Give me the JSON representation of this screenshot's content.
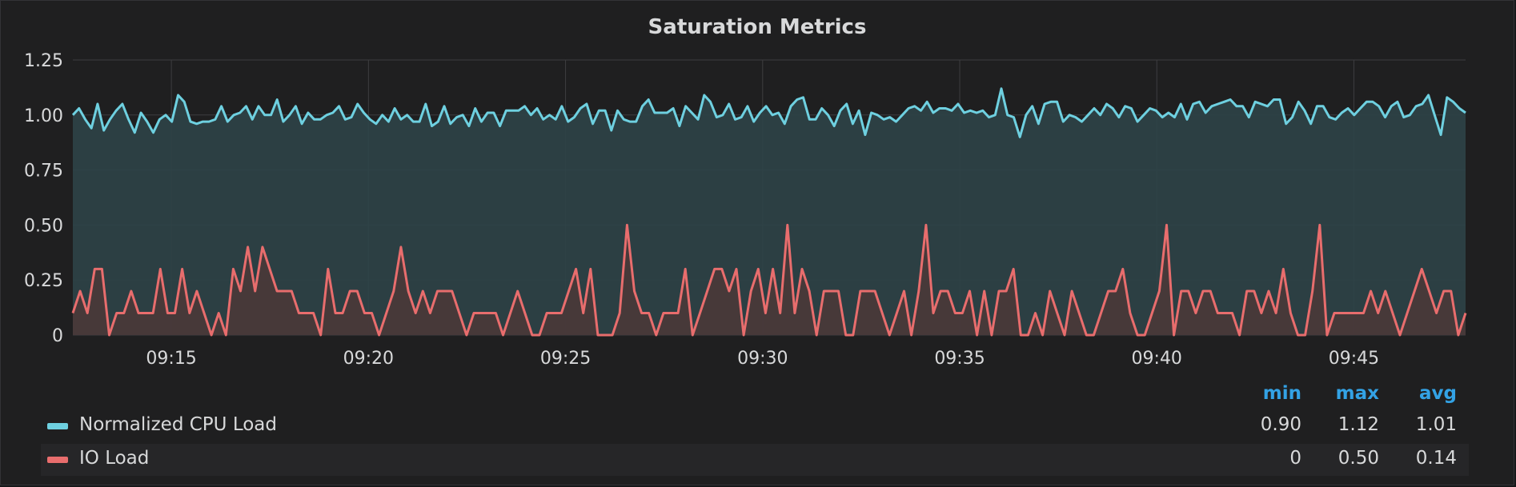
{
  "panel": {
    "title": "Saturation Metrics"
  },
  "colors": {
    "cpu": "#6ed0e0",
    "io": "#e86d6d",
    "cpu_fill": "#2e4247",
    "io_fill": "#4a3839",
    "grid": "#3d3d40",
    "tick_text": "#d8d9da",
    "legend_header": "#33a2e5"
  },
  "chart_data": {
    "type": "area",
    "x_start": "09:12:30",
    "x_end": "09:47:50",
    "x_tick_labels": [
      "09:15",
      "09:20",
      "09:25",
      "09:30",
      "09:35",
      "09:40",
      "09:45"
    ],
    "y_tick_labels": [
      "0",
      "0.25",
      "0.50",
      "0.75",
      "1.00",
      "1.25"
    ],
    "ylim": [
      0,
      1.25
    ],
    "grid": true,
    "legend_placement": "bottom",
    "series": [
      {
        "name": "Normalized CPU Load",
        "values": [
          1.0,
          1.03,
          0.98,
          0.94,
          1.05,
          0.93,
          0.98,
          1.02,
          1.05,
          0.98,
          0.92,
          1.01,
          0.97,
          0.92,
          0.98,
          1.0,
          0.97,
          1.09,
          1.06,
          0.97,
          0.96,
          0.97,
          0.97,
          0.98,
          1.04,
          0.97,
          1.0,
          1.01,
          1.04,
          0.98,
          1.04,
          1.0,
          1.0,
          1.07,
          0.97,
          1.0,
          1.04,
          0.96,
          1.01,
          0.98,
          0.98,
          1.0,
          1.01,
          1.04,
          0.98,
          0.99,
          1.05,
          1.01,
          0.98,
          0.96,
          1.0,
          0.97,
          1.03,
          0.98,
          1.0,
          0.97,
          0.97,
          1.05,
          0.95,
          0.97,
          1.04,
          0.96,
          0.99,
          1.0,
          0.95,
          1.03,
          0.97,
          1.01,
          1.01,
          0.95,
          1.02,
          1.02,
          1.02,
          1.04,
          1.0,
          1.03,
          0.98,
          1.0,
          0.98,
          1.04,
          0.97,
          0.99,
          1.03,
          1.05,
          0.96,
          1.02,
          1.02,
          0.93,
          1.02,
          0.98,
          0.97,
          0.97,
          1.04,
          1.07,
          1.01,
          1.01,
          1.01,
          1.03,
          0.95,
          1.04,
          1.01,
          0.98,
          1.09,
          1.06,
          0.99,
          1.0,
          1.05,
          0.98,
          0.99,
          1.04,
          0.97,
          1.01,
          1.04,
          1.0,
          1.01,
          0.96,
          1.04,
          1.07,
          1.08,
          0.98,
          0.98,
          1.03,
          1.0,
          0.95,
          1.02,
          1.05,
          0.96,
          1.02,
          0.91,
          1.01,
          1.0,
          0.98,
          0.99,
          0.97,
          1.0,
          1.03,
          1.04,
          1.02,
          1.06,
          1.01,
          1.03,
          1.03,
          1.02,
          1.05,
          1.01,
          1.02,
          1.01,
          1.02,
          0.99,
          1.0,
          1.12,
          1.0,
          0.99,
          0.9,
          1.0,
          1.04,
          0.96,
          1.05,
          1.06,
          1.06,
          0.97,
          1.0,
          0.99,
          0.97,
          1.0,
          1.03,
          1.0,
          1.05,
          1.03,
          0.99,
          1.04,
          1.03,
          0.97,
          1.0,
          1.03,
          1.02,
          0.99,
          1.01,
          0.99,
          1.05,
          0.98,
          1.05,
          1.06,
          1.01,
          1.04,
          1.05,
          1.06,
          1.07,
          1.04,
          1.04,
          0.99,
          1.06,
          1.05,
          1.04,
          1.07,
          1.07,
          0.96,
          0.99,
          1.06,
          1.02,
          0.96,
          1.04,
          1.04,
          0.99,
          0.98,
          1.01,
          1.03,
          1.0,
          1.03,
          1.06,
          1.06,
          1.04,
          0.99,
          1.04,
          1.06,
          0.99,
          1.0,
          1.04,
          1.05,
          1.09,
          1.0,
          0.91,
          1.08,
          1.06,
          1.03,
          1.01
        ],
        "min": "0.90",
        "max": "1.12",
        "avg": "1.01"
      },
      {
        "name": "IO Load",
        "values": [
          0.1,
          0.2,
          0.1,
          0.3,
          0.3,
          0.0,
          0.1,
          0.1,
          0.2,
          0.1,
          0.1,
          0.1,
          0.3,
          0.1,
          0.1,
          0.3,
          0.1,
          0.2,
          0.1,
          0.0,
          0.1,
          0.0,
          0.3,
          0.2,
          0.4,
          0.2,
          0.4,
          0.3,
          0.2,
          0.2,
          0.2,
          0.1,
          0.1,
          0.1,
          0.0,
          0.3,
          0.1,
          0.1,
          0.2,
          0.2,
          0.1,
          0.1,
          0.0,
          0.1,
          0.2,
          0.4,
          0.2,
          0.1,
          0.2,
          0.1,
          0.2,
          0.2,
          0.2,
          0.1,
          0.0,
          0.1,
          0.1,
          0.1,
          0.1,
          0.0,
          0.1,
          0.2,
          0.1,
          0.0,
          0.0,
          0.1,
          0.1,
          0.1,
          0.2,
          0.3,
          0.1,
          0.3,
          0.0,
          0.0,
          0.0,
          0.1,
          0.5,
          0.2,
          0.1,
          0.1,
          0.0,
          0.1,
          0.1,
          0.1,
          0.3,
          0.0,
          0.1,
          0.2,
          0.3,
          0.3,
          0.2,
          0.3,
          0.0,
          0.2,
          0.3,
          0.1,
          0.3,
          0.1,
          0.5,
          0.1,
          0.3,
          0.2,
          0.0,
          0.2,
          0.2,
          0.2,
          0.0,
          0.0,
          0.2,
          0.2,
          0.2,
          0.1,
          0.0,
          0.1,
          0.2,
          0.0,
          0.2,
          0.5,
          0.1,
          0.2,
          0.2,
          0.1,
          0.1,
          0.2,
          0.0,
          0.2,
          0.0,
          0.2,
          0.2,
          0.3,
          0.0,
          0.0,
          0.1,
          0.0,
          0.2,
          0.1,
          0.0,
          0.2,
          0.1,
          0.0,
          0.0,
          0.1,
          0.2,
          0.2,
          0.3,
          0.1,
          0.0,
          0.0,
          0.1,
          0.2,
          0.5,
          0.0,
          0.2,
          0.2,
          0.1,
          0.2,
          0.2,
          0.1,
          0.1,
          0.1,
          0.0,
          0.2,
          0.2,
          0.1,
          0.2,
          0.1,
          0.3,
          0.1,
          0.0,
          0.0,
          0.2,
          0.5,
          0.0,
          0.1,
          0.1,
          0.1,
          0.1,
          0.1,
          0.2,
          0.1,
          0.2,
          0.1,
          0.0,
          0.1,
          0.2,
          0.3,
          0.2,
          0.1,
          0.2,
          0.2,
          0.0,
          0.1
        ],
        "min": "0",
        "max": "0.50",
        "avg": "0.14"
      }
    ],
    "legend_columns": [
      "min",
      "max",
      "avg"
    ]
  }
}
